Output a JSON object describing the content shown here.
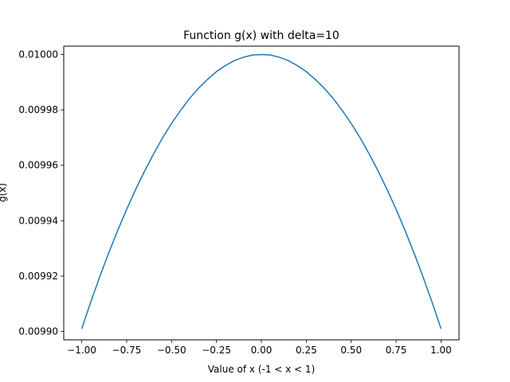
{
  "chart_data": {
    "type": "line",
    "title": "Function g(x) with delta=10",
    "xlabel": "Value of x (-1 < x < 1)",
    "ylabel": "g(x)",
    "xlim": [
      -1.1,
      1.1
    ],
    "ylim": [
      0.009897,
      0.010003
    ],
    "grid": false,
    "x_ticks": [
      -1.0,
      -0.75,
      -0.5,
      -0.25,
      0.0,
      0.25,
      0.5,
      0.75,
      1.0
    ],
    "x_tick_labels": [
      "−1.00",
      "−0.75",
      "−0.50",
      "−0.25",
      "0.00",
      "0.25",
      "0.50",
      "0.75",
      "1.00"
    ],
    "y_ticks": [
      0.0099,
      0.00992,
      0.00994,
      0.00996,
      0.00998,
      0.01
    ],
    "y_tick_labels": [
      "0.00990",
      "0.00992",
      "0.00994",
      "0.00996",
      "0.00998",
      "0.01000"
    ],
    "series": [
      {
        "color": "#1f77b4",
        "x": [
          -1.0,
          -0.95,
          -0.9,
          -0.85,
          -0.8,
          -0.75,
          -0.7,
          -0.65,
          -0.6,
          -0.55,
          -0.5,
          -0.45,
          -0.4,
          -0.35,
          -0.3,
          -0.25,
          -0.2,
          -0.15,
          -0.1,
          -0.05,
          0.0,
          0.05,
          0.1,
          0.15,
          0.2,
          0.25,
          0.3,
          0.35,
          0.4,
          0.45,
          0.5,
          0.55,
          0.6,
          0.65,
          0.7,
          0.75,
          0.8,
          0.85,
          0.9,
          0.95,
          1.0
        ],
        "y": [
          0.009901,
          0.0099106,
          0.0099197,
          0.0099283,
          0.0099364,
          0.0099441,
          0.0099512,
          0.0099579,
          0.0099641,
          0.0099699,
          0.0099751,
          0.0099798,
          0.0099841,
          0.0099878,
          0.009991,
          0.0099938,
          0.009996,
          0.0099978,
          0.009999,
          0.0099998,
          0.01,
          0.0099998,
          0.009999,
          0.0099978,
          0.009996,
          0.0099938,
          0.009991,
          0.0099878,
          0.0099841,
          0.0099798,
          0.0099751,
          0.0099699,
          0.0099641,
          0.0099579,
          0.0099512,
          0.0099441,
          0.0099364,
          0.0099283,
          0.0099197,
          0.0099106,
          0.009901
        ]
      }
    ]
  }
}
